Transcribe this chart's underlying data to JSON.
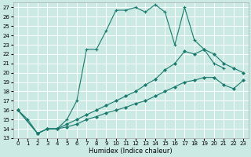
{
  "xlabel": "Humidex (Indice chaleur)",
  "bg_color": "#cceae4",
  "grid_color": "#ffffff",
  "line_color": "#1a7a6e",
  "xlim": [
    -0.5,
    23.5
  ],
  "ylim": [
    13,
    27.5
  ],
  "yticks": [
    13,
    14,
    15,
    16,
    17,
    18,
    19,
    20,
    21,
    22,
    23,
    24,
    25,
    26,
    27
  ],
  "xticks": [
    0,
    1,
    2,
    3,
    4,
    5,
    6,
    7,
    8,
    9,
    10,
    11,
    12,
    13,
    14,
    15,
    16,
    17,
    18,
    19,
    20,
    21,
    22,
    23
  ],
  "series1_x": [
    0,
    1,
    2,
    3,
    4,
    5,
    6,
    7,
    8,
    9,
    10,
    11,
    12,
    13,
    14,
    15,
    16,
    17,
    18,
    19,
    20,
    21
  ],
  "series1_y": [
    16,
    15,
    13.5,
    14,
    14,
    15,
    17,
    22.5,
    22.5,
    24.5,
    26.7,
    26.7,
    27,
    26.5,
    27.3,
    26.5,
    23,
    27,
    23.5,
    22.5,
    21,
    20.5
  ],
  "series2_x": [
    0,
    2,
    3,
    4,
    5,
    6,
    7,
    8,
    9,
    10,
    11,
    12,
    13,
    14,
    15,
    16,
    17,
    18,
    19,
    20,
    21,
    22,
    23
  ],
  "series2_y": [
    16,
    13.5,
    14,
    14,
    14.5,
    15,
    15.5,
    16,
    16.5,
    17,
    17.5,
    18,
    18.7,
    19.3,
    20.3,
    21,
    22.3,
    22,
    22.5,
    22,
    21,
    20.5,
    20
  ],
  "series3_x": [
    0,
    2,
    3,
    4,
    5,
    6,
    7,
    8,
    9,
    10,
    11,
    12,
    13,
    14,
    15,
    16,
    17,
    18,
    19,
    20,
    21,
    22,
    23
  ],
  "series3_y": [
    16,
    13.5,
    14,
    14,
    14.2,
    14.5,
    15,
    15.3,
    15.7,
    16,
    16.3,
    16.7,
    17,
    17.5,
    18,
    18.5,
    19,
    19.2,
    19.5,
    19.5,
    18.7,
    18.3,
    19.2
  ]
}
